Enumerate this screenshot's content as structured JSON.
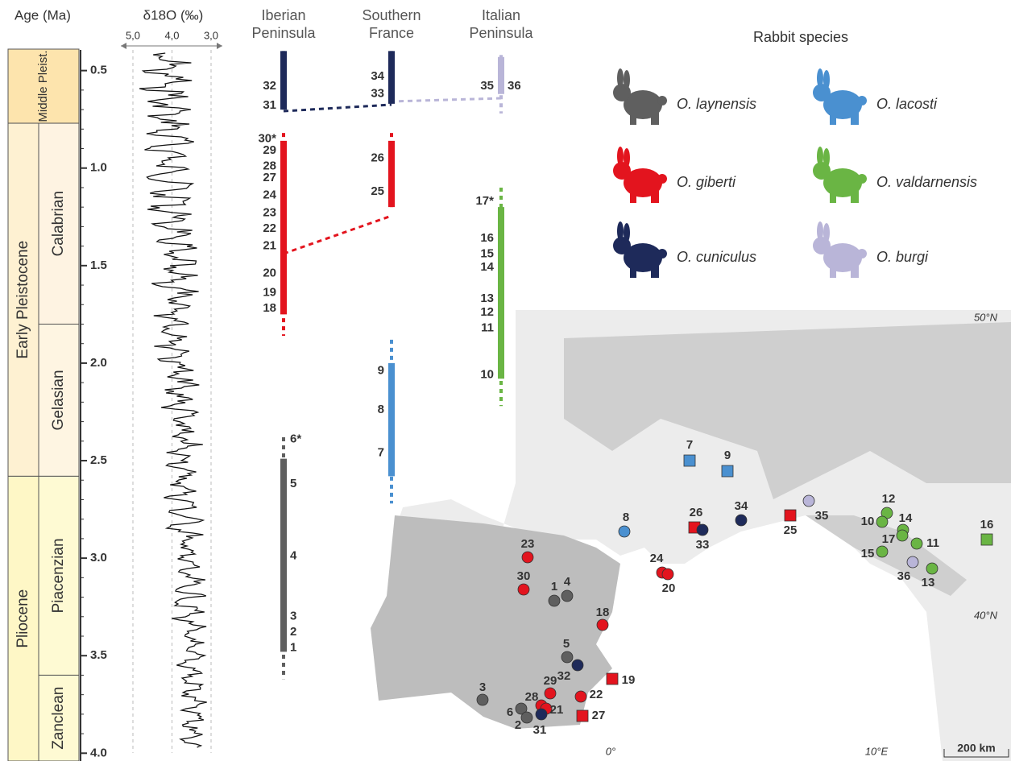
{
  "header": {
    "age_label": "Age (Ma)",
    "d18o_label": "δ18O (‰)",
    "d18o_ticks": [
      {
        "value": 5,
        "label": "5,0"
      },
      {
        "value": 4,
        "label": "4,0"
      },
      {
        "value": 3,
        "label": "3,0"
      }
    ],
    "regions": [
      "Iberian Peninsula",
      "Southern France",
      "Italian Peninsula"
    ],
    "legend_title": "Rabbit species"
  },
  "age_axis": {
    "lim": [
      0.39,
      4.04
    ],
    "ticks": [
      {
        "value": 0.5,
        "label": "0.5"
      },
      {
        "value": 1,
        "label": "1.0"
      },
      {
        "value": 1.5,
        "label": "1.5"
      },
      {
        "value": 2,
        "label": "2.0"
      },
      {
        "value": 2.5,
        "label": "2.5"
      },
      {
        "value": 3,
        "label": "3.0"
      },
      {
        "value": 3.5,
        "label": "3.5"
      },
      {
        "value": 4,
        "label": "4.0"
      }
    ]
  },
  "epochs": [
    {
      "name": "Middle Pleist.",
      "start": 0.39,
      "end": 0.77
    },
    {
      "name": "Early Pleistocene",
      "start": 0.77,
      "end": 2.58
    },
    {
      "name": "Pliocene",
      "start": 2.58,
      "end": 4.04
    }
  ],
  "stages": [
    {
      "name": "Calabrian",
      "start": 0.77,
      "end": 1.8
    },
    {
      "name": "Gelasian",
      "start": 1.8,
      "end": 2.58
    },
    {
      "name": "Piacenzian",
      "start": 2.58,
      "end": 3.6
    },
    {
      "name": "Zanclean",
      "start": 3.6,
      "end": 4.04
    }
  ],
  "species": [
    {
      "name": "O. laynensis",
      "color": "#5f5f5f"
    },
    {
      "name": "O. lacosti",
      "color": "#4a90d0"
    },
    {
      "name": "O. giberti",
      "color": "#e3141e"
    },
    {
      "name": "O. valdarnensis",
      "color": "#6ab544"
    },
    {
      "name": "O. cuniculus",
      "color": "#1e2a5a"
    },
    {
      "name": "O. burgi",
      "color": "#b9b5d8"
    }
  ],
  "ranges": [
    {
      "region": 0,
      "species": 4,
      "start": 0.4,
      "end": 0.7,
      "dash_start": 0.4,
      "dash_end": 0.7
    },
    {
      "region": 0,
      "species": 2,
      "start": 0.86,
      "end": 1.75,
      "dash_start": 0.82,
      "dash_end": 1.86
    },
    {
      "region": 0,
      "species": 0,
      "start": 2.49,
      "end": 3.48,
      "dash_start": 2.38,
      "dash_end": 3.62
    },
    {
      "region": 1,
      "species": 4,
      "start": 0.4,
      "end": 0.67,
      "dash_start": 0.4,
      "dash_end": 0.67
    },
    {
      "region": 1,
      "species": 2,
      "start": 0.86,
      "end": 1.2,
      "dash_start": 0.82,
      "dash_end": 1.2
    },
    {
      "region": 1,
      "species": 1,
      "start": 2.0,
      "end": 2.58,
      "dash_start": 1.88,
      "dash_end": 2.72
    },
    {
      "region": 2,
      "species": 5,
      "start": 0.43,
      "end": 0.62,
      "dash_start": 0.42,
      "dash_end": 0.72
    },
    {
      "region": 2,
      "species": 3,
      "start": 1.2,
      "end": 2.08,
      "dash_start": 1.1,
      "dash_end": 2.22
    }
  ],
  "site_labels": [
    {
      "region": 0,
      "label": "32",
      "age": 0.58
    },
    {
      "region": 0,
      "label": "31",
      "age": 0.68
    },
    {
      "region": 0,
      "label": "30*",
      "age": 0.85
    },
    {
      "region": 0,
      "label": "29",
      "age": 0.91
    },
    {
      "region": 0,
      "label": "28",
      "age": 0.99
    },
    {
      "region": 0,
      "label": "27",
      "age": 1.05
    },
    {
      "region": 0,
      "label": "24",
      "age": 1.14
    },
    {
      "region": 0,
      "label": "23",
      "age": 1.23
    },
    {
      "region": 0,
      "label": "22",
      "age": 1.31
    },
    {
      "region": 0,
      "label": "21",
      "age": 1.4
    },
    {
      "region": 0,
      "label": "20",
      "age": 1.54
    },
    {
      "region": 0,
      "label": "19",
      "age": 1.64
    },
    {
      "region": 0,
      "label": "18",
      "age": 1.72
    },
    {
      "region": 0,
      "label": "6*",
      "age": 2.39
    },
    {
      "region": 0,
      "label": "5",
      "age": 2.62
    },
    {
      "region": 0,
      "label": "4",
      "age": 2.99
    },
    {
      "region": 0,
      "label": "3",
      "age": 3.3
    },
    {
      "region": 0,
      "label": "2",
      "age": 3.38
    },
    {
      "region": 0,
      "label": "1",
      "age": 3.46
    },
    {
      "region": 1,
      "label": "34",
      "age": 0.53
    },
    {
      "region": 1,
      "label": "33",
      "age": 0.62
    },
    {
      "region": 1,
      "label": "26",
      "age": 0.95
    },
    {
      "region": 1,
      "label": "25",
      "age": 1.12
    },
    {
      "region": 1,
      "label": "9",
      "age": 2.04
    },
    {
      "region": 1,
      "label": "8",
      "age": 2.24
    },
    {
      "region": 1,
      "label": "7",
      "age": 2.46
    },
    {
      "region": 2,
      "label": "35",
      "age": 0.58
    },
    {
      "region": 2,
      "label": "36",
      "age": 0.58
    },
    {
      "region": 2,
      "label": "17*",
      "age": 1.17
    },
    {
      "region": 2,
      "label": "16",
      "age": 1.36
    },
    {
      "region": 2,
      "label": "15",
      "age": 1.44
    },
    {
      "region": 2,
      "label": "14",
      "age": 1.51
    },
    {
      "region": 2,
      "label": "13",
      "age": 1.67
    },
    {
      "region": 2,
      "label": "12",
      "age": 1.74
    },
    {
      "region": 2,
      "label": "11",
      "age": 1.82
    },
    {
      "region": 2,
      "label": "10",
      "age": 2.06
    }
  ],
  "map": {
    "lat_labels": [
      "50°N",
      "40°N"
    ],
    "lon_labels": [
      "0°",
      "10°E"
    ],
    "scale": "200 km",
    "sites": [
      {
        "label": "7",
        "species": 1,
        "shape": "square"
      },
      {
        "label": "9",
        "species": 1,
        "shape": "square"
      },
      {
        "label": "8",
        "species": 1,
        "shape": "circle"
      },
      {
        "label": "26",
        "species": 2,
        "shape": "square"
      },
      {
        "label": "33",
        "species": 4,
        "shape": "circle"
      },
      {
        "label": "34",
        "species": 4,
        "shape": "circle"
      },
      {
        "label": "25",
        "species": 2,
        "shape": "square"
      },
      {
        "label": "35",
        "species": 5,
        "shape": "circle"
      },
      {
        "label": "12",
        "species": 3,
        "shape": "circle"
      },
      {
        "label": "10",
        "species": 3,
        "shape": "circle"
      },
      {
        "label": "14",
        "species": 3,
        "shape": "circle"
      },
      {
        "label": "17",
        "species": 3,
        "shape": "circle"
      },
      {
        "label": "11",
        "species": 3,
        "shape": "circle"
      },
      {
        "label": "15",
        "species": 3,
        "shape": "circle"
      },
      {
        "label": "36",
        "species": 5,
        "shape": "circle"
      },
      {
        "label": "13",
        "species": 3,
        "shape": "circle"
      },
      {
        "label": "16",
        "species": 3,
        "shape": "square"
      },
      {
        "label": "23",
        "species": 2,
        "shape": "circle"
      },
      {
        "label": "30",
        "species": 2,
        "shape": "circle"
      },
      {
        "label": "24",
        "species": 2,
        "shape": "circle"
      },
      {
        "label": "20",
        "species": 2,
        "shape": "circle"
      },
      {
        "label": "1",
        "species": 0,
        "shape": "circle"
      },
      {
        "label": "4",
        "species": 0,
        "shape": "circle"
      },
      {
        "label": "18",
        "species": 2,
        "shape": "circle"
      },
      {
        "label": "5",
        "species": 0,
        "shape": "circle"
      },
      {
        "label": "32",
        "species": 4,
        "shape": "circle"
      },
      {
        "label": "19",
        "species": 2,
        "shape": "square"
      },
      {
        "label": "29",
        "species": 2,
        "shape": "circle"
      },
      {
        "label": "22",
        "species": 2,
        "shape": "circle"
      },
      {
        "label": "3",
        "species": 0,
        "shape": "circle"
      },
      {
        "label": "28",
        "species": 2,
        "shape": "circle"
      },
      {
        "label": "6",
        "species": 0,
        "shape": "circle"
      },
      {
        "label": "21",
        "species": 2,
        "shape": "circle"
      },
      {
        "label": "2",
        "species": 0,
        "shape": "circle"
      },
      {
        "label": "31",
        "species": 4,
        "shape": "circle"
      },
      {
        "label": "27",
        "species": 2,
        "shape": "square"
      }
    ]
  }
}
